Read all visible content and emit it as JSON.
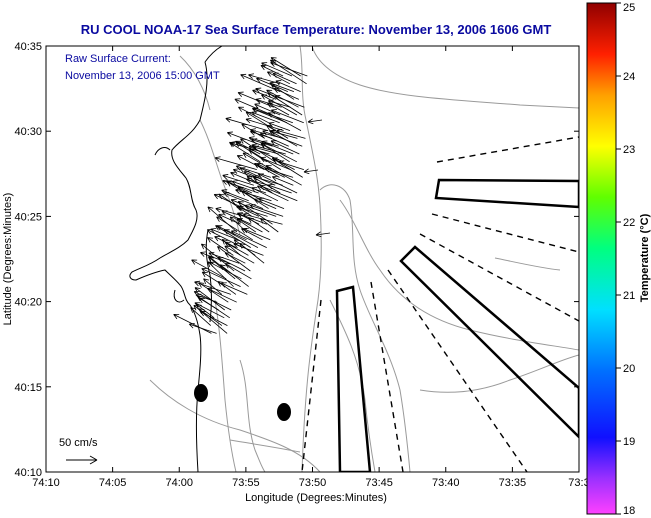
{
  "title": "RU COOL  NOAA-17  Sea Surface Temperature:  November 13, 2006 1606 GMT",
  "current_note": {
    "line1": "Raw Surface Current:",
    "line2": "November 13, 2006 15:00 GMT"
  },
  "scale_label": "50 cm/s",
  "axes": {
    "xlabel": "Longitude (Degrees:Minutes)",
    "ylabel": "Latitude (Degrees:Minutes)",
    "x_ticks": [
      "74:10",
      "74:05",
      "74:00",
      "73:55",
      "73:50",
      "73:45",
      "73:40",
      "73:35",
      "73:3"
    ],
    "y_ticks": [
      "40:35",
      "40:30",
      "40:25",
      "40:20",
      "40:15",
      "40:10"
    ]
  },
  "colorbar": {
    "title": "Temperature (°C)",
    "ticks": [
      "25",
      "24",
      "23",
      "22",
      "21",
      "20",
      "19",
      "18"
    ],
    "min": 18,
    "max": 25
  },
  "colors": {
    "title_text": "#0a0aa0",
    "contour": "#9a9a9a",
    "coastline": "#000000",
    "vectors": "#000000"
  }
}
